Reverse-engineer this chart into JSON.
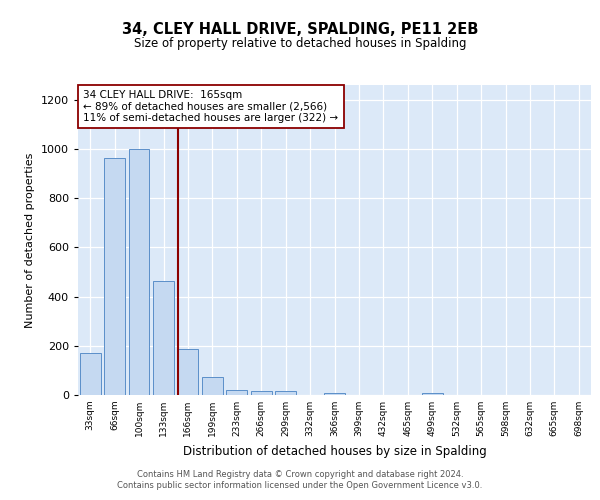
{
  "title": "34, CLEY HALL DRIVE, SPALDING, PE11 2EB",
  "subtitle": "Size of property relative to detached houses in Spalding",
  "xlabel": "Distribution of detached houses by size in Spalding",
  "ylabel": "Number of detached properties",
  "bin_labels": [
    "33sqm",
    "66sqm",
    "100sqm",
    "133sqm",
    "166sqm",
    "199sqm",
    "233sqm",
    "266sqm",
    "299sqm",
    "332sqm",
    "366sqm",
    "399sqm",
    "432sqm",
    "465sqm",
    "499sqm",
    "532sqm",
    "565sqm",
    "598sqm",
    "632sqm",
    "665sqm",
    "698sqm"
  ],
  "bar_heights": [
    170,
    965,
    1000,
    465,
    185,
    75,
    22,
    18,
    15,
    0,
    10,
    0,
    0,
    0,
    10,
    0,
    0,
    0,
    0,
    0,
    0
  ],
  "bar_color": "#c5d9f1",
  "bar_edge_color": "#5b8fc9",
  "property_line_bin_idx": 4,
  "property_line_color": "#8b0000",
  "annotation_text": "34 CLEY HALL DRIVE:  165sqm\n← 89% of detached houses are smaller (2,566)\n11% of semi-detached houses are larger (322) →",
  "annotation_box_color": "white",
  "annotation_box_edge_color": "#8b0000",
  "ylim": [
    0,
    1260
  ],
  "yticks": [
    0,
    200,
    400,
    600,
    800,
    1000,
    1200
  ],
  "footer_line1": "Contains HM Land Registry data © Crown copyright and database right 2024.",
  "footer_line2": "Contains public sector information licensed under the Open Government Licence v3.0.",
  "bg_color": "#dce9f8",
  "fig_bg_color": "#ffffff",
  "n_bins": 21
}
